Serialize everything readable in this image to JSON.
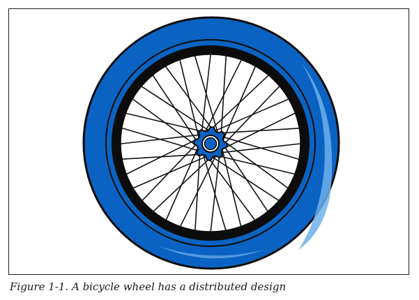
{
  "figure": {
    "caption": "Figure 1-1. A bicycle wheel has a distributed design",
    "illustration": "bicycle-wheel",
    "colors": {
      "tire": "#0a63c2",
      "tire_highlight": "#5aa2e6",
      "rim": "#0c0c0c",
      "spokes": "#111111",
      "hub": "#0a63c2",
      "hub_center": "#ffffff",
      "frame_border": "#1a1a1a"
    }
  }
}
